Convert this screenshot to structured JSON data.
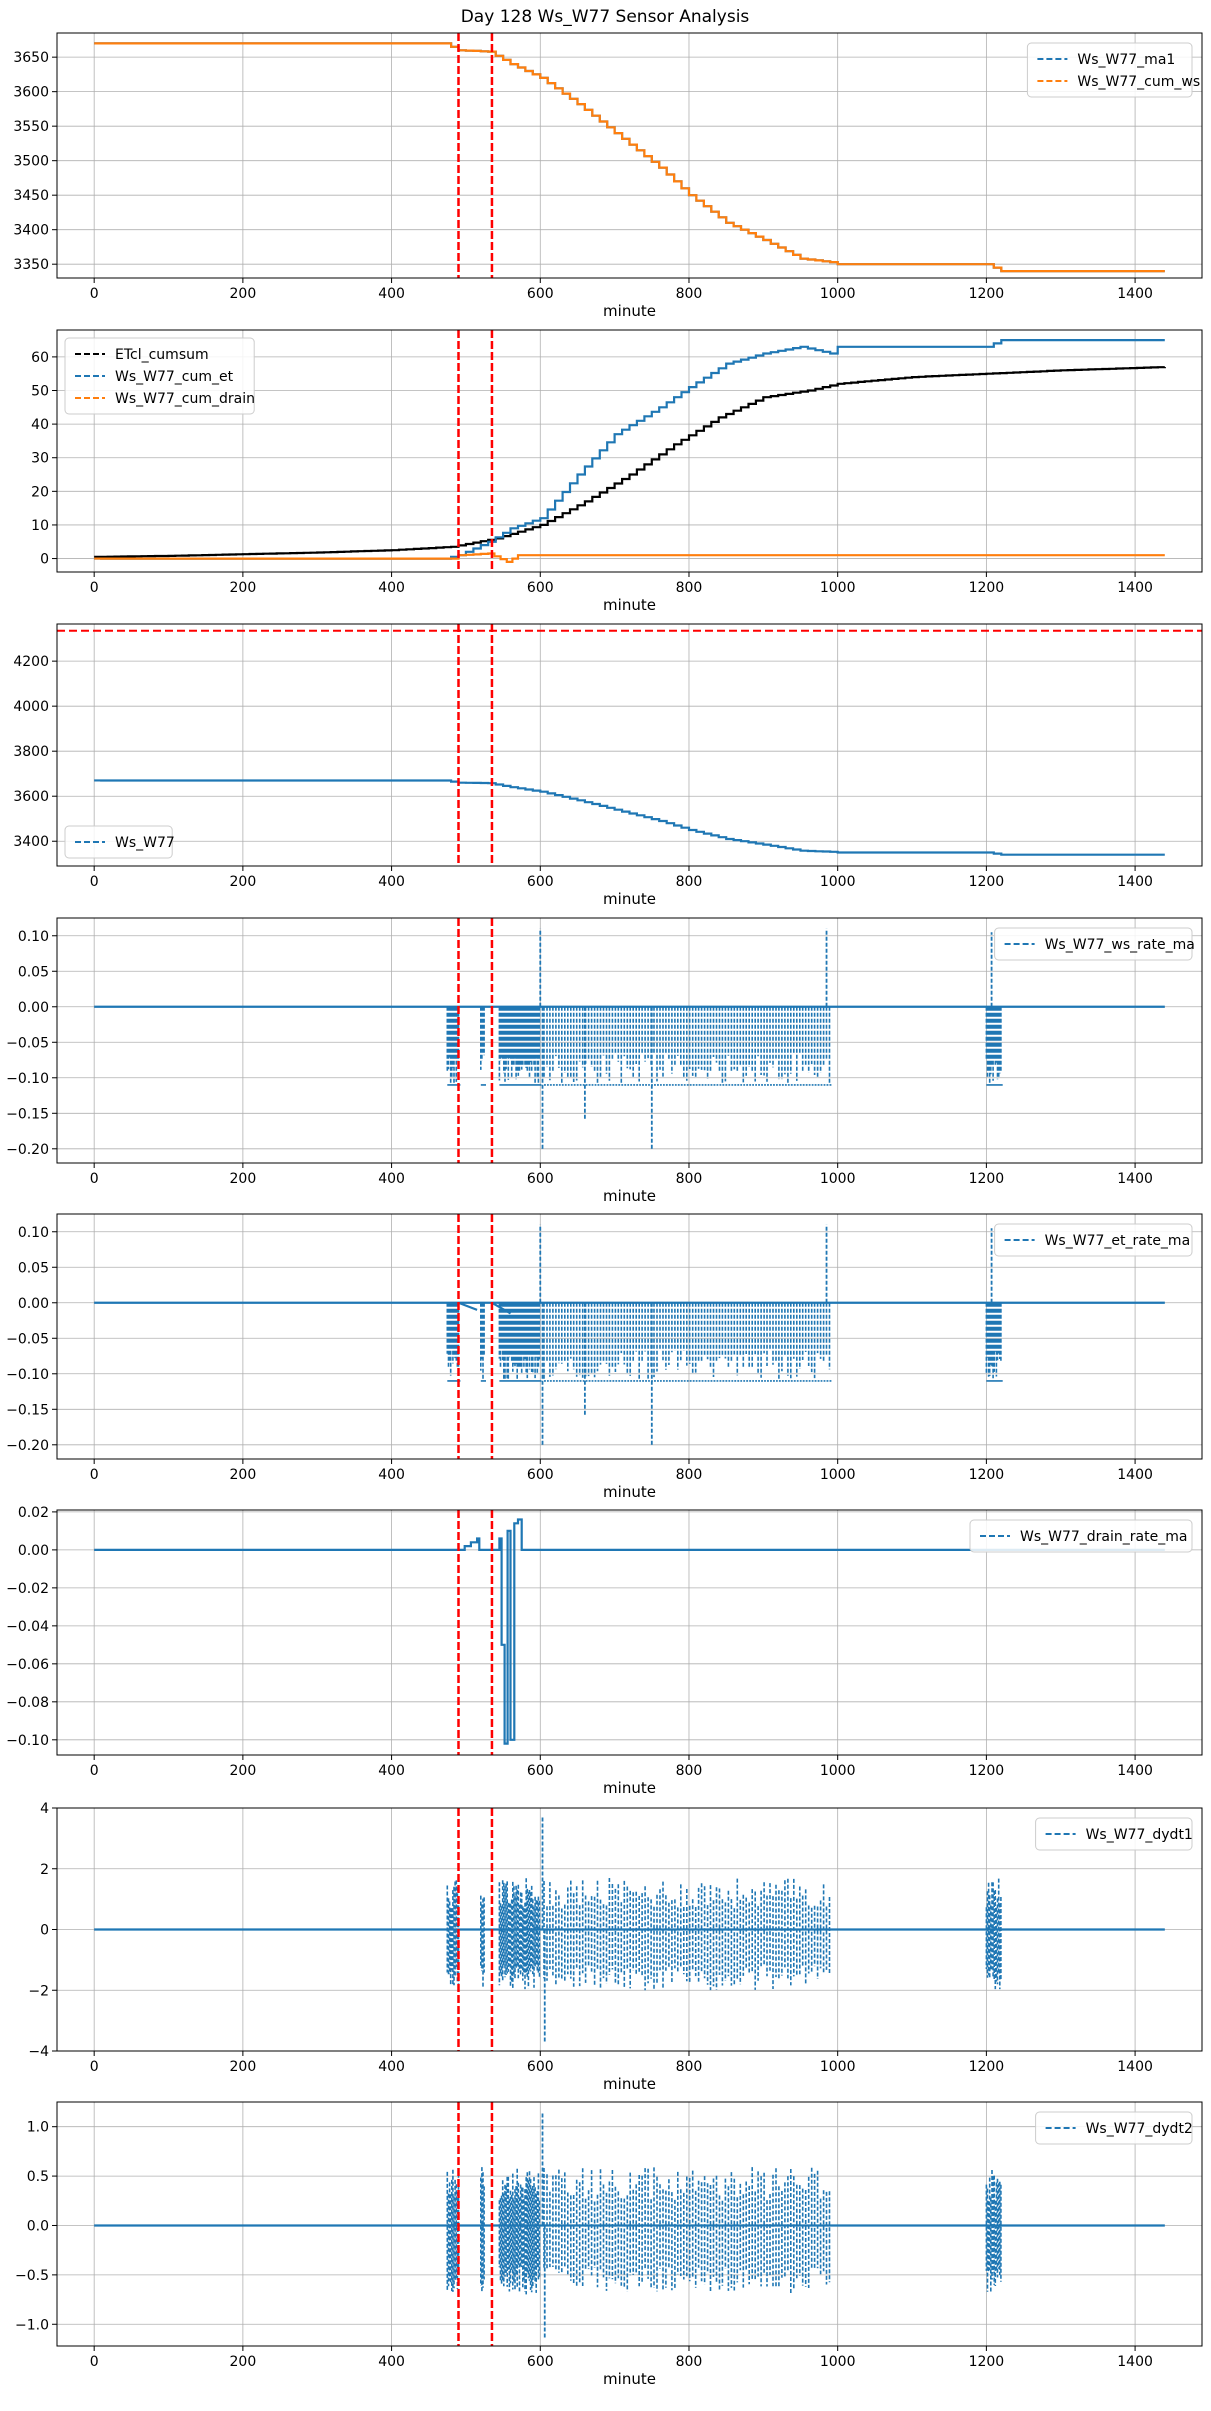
{
  "figure_title": "Day 128 Ws_W77 Sensor Analysis",
  "colors": {
    "blue": "#1f77b4",
    "orange": "#ff7f0e",
    "black": "#000000",
    "red": "#ff0000",
    "grid": "#b0b0b0"
  },
  "chart_data": [
    {
      "type": "line",
      "id": "p1",
      "xlabel": "minute",
      "legend_loc": "top-right",
      "xlim": [
        -50,
        1490
      ],
      "ylim": [
        3330,
        3685
      ],
      "xticks": [
        0,
        200,
        400,
        600,
        800,
        1000,
        1200,
        1400
      ],
      "yticks": [
        3350,
        3400,
        3450,
        3500,
        3550,
        3600,
        3650
      ],
      "vlines": [
        490,
        535
      ],
      "series": [
        {
          "name": "Ws_W77_ma1",
          "color": "#1f77b4",
          "style": "step",
          "x": [
            0,
            470,
            490,
            530,
            560,
            600,
            650,
            700,
            760,
            800,
            850,
            900,
            950,
            990,
            1000,
            1200,
            1220,
            1440
          ],
          "y": [
            3670,
            3670,
            3660,
            3658,
            3640,
            3620,
            3582,
            3540,
            3490,
            3450,
            3410,
            3385,
            3358,
            3353,
            3350,
            3350,
            3340,
            3340
          ]
        },
        {
          "name": "Ws_W77_cum_ws",
          "color": "#ff7f0e",
          "style": "step",
          "x": [
            0,
            470,
            490,
            530,
            560,
            600,
            650,
            700,
            760,
            800,
            850,
            900,
            950,
            990,
            1000,
            1200,
            1220,
            1440
          ],
          "y": [
            3670,
            3670,
            3660,
            3658,
            3640,
            3620,
            3582,
            3540,
            3490,
            3450,
            3410,
            3385,
            3358,
            3353,
            3350,
            3350,
            3340,
            3340
          ]
        }
      ]
    },
    {
      "type": "line",
      "id": "p2",
      "xlabel": "minute",
      "legend_loc": "top-left",
      "xlim": [
        -50,
        1490
      ],
      "ylim": [
        -4,
        68
      ],
      "xticks": [
        0,
        200,
        400,
        600,
        800,
        1000,
        1200,
        1400
      ],
      "yticks": [
        0,
        10,
        20,
        30,
        40,
        50,
        60
      ],
      "vlines": [
        490,
        535
      ],
      "series": [
        {
          "name": "ETcl_cumsum",
          "color": "#000000",
          "style": "step",
          "x": [
            0,
            100,
            200,
            300,
            400,
            480,
            540,
            600,
            660,
            720,
            780,
            840,
            900,
            960,
            1000,
            1100,
            1200,
            1300,
            1440
          ],
          "y": [
            0.5,
            0.8,
            1.3,
            1.8,
            2.5,
            3.5,
            6,
            10,
            17,
            25,
            34,
            42,
            48,
            50,
            52,
            54,
            55,
            56,
            57
          ]
        },
        {
          "name": "Ws_W77_cum_et",
          "color": "#1f77b4",
          "style": "step",
          "x": [
            0,
            470,
            490,
            530,
            560,
            600,
            650,
            700,
            760,
            800,
            850,
            900,
            950,
            990,
            1000,
            1200,
            1220,
            1440
          ],
          "y": [
            0,
            0,
            1,
            5,
            9,
            12,
            25,
            37,
            45,
            51,
            58,
            61,
            63,
            61,
            63,
            63,
            65,
            65
          ]
        },
        {
          "name": "Ws_W77_cum_drain",
          "color": "#ff7f0e",
          "style": "step",
          "x": [
            0,
            480,
            490,
            530,
            555,
            570,
            1440
          ],
          "y": [
            0,
            0,
            1,
            1.5,
            -1,
            1,
            1
          ]
        }
      ]
    },
    {
      "type": "line",
      "id": "p3",
      "xlabel": "minute",
      "legend_loc": "bottom-left",
      "xlim": [
        -50,
        1490
      ],
      "ylim": [
        3290,
        4365
      ],
      "xticks": [
        0,
        200,
        400,
        600,
        800,
        1000,
        1200,
        1400
      ],
      "yticks": [
        3400,
        3600,
        3800,
        4000,
        4200
      ],
      "vlines": [
        490,
        535
      ],
      "hline": 4335,
      "series": [
        {
          "name": "Ws_W77",
          "color": "#1f77b4",
          "style": "step",
          "x": [
            0,
            470,
            490,
            530,
            560,
            600,
            650,
            700,
            760,
            800,
            850,
            900,
            950,
            990,
            1000,
            1200,
            1220,
            1440
          ],
          "y": [
            3670,
            3670,
            3660,
            3658,
            3640,
            3620,
            3582,
            3540,
            3490,
            3450,
            3410,
            3385,
            3358,
            3353,
            3350,
            3350,
            3340,
            3340
          ]
        }
      ]
    },
    {
      "type": "line",
      "id": "p4",
      "xlabel": "minute",
      "legend_loc": "top-right",
      "xlim": [
        -50,
        1490
      ],
      "ylim": [
        -0.22,
        0.125
      ],
      "xticks": [
        0,
        200,
        400,
        600,
        800,
        1000,
        1200,
        1400
      ],
      "yticks": [
        0.1,
        0.05,
        0.0,
        -0.05,
        -0.1,
        -0.15,
        -0.2
      ],
      "ytick_labels": [
        "0.10",
        "0.05",
        "0.00",
        "−0.05",
        "−0.10",
        "−0.15",
        "−0.20"
      ],
      "vlines": [
        490,
        535
      ],
      "series": [
        {
          "name": "Ws_W77_ws_rate_ma",
          "color": "#1f77b4",
          "style": "spiky",
          "base": 0,
          "low": -0.11,
          "bursts": [
            [
              475,
              490
            ],
            [
              520,
              525
            ],
            [
              545,
              600
            ],
            [
              605,
              990
            ],
            [
              1200,
              1220
            ]
          ],
          "peaks": [
            [
              600,
              0.11
            ],
            [
              985,
              0.11
            ],
            [
              1207,
              0.105
            ]
          ],
          "troughs": [
            [
              603,
              -0.2
            ],
            [
              750,
              -0.2
            ],
            [
              660,
              -0.16
            ]
          ]
        }
      ]
    },
    {
      "type": "line",
      "id": "p5",
      "xlabel": "minute",
      "legend_loc": "top-right",
      "xlim": [
        -50,
        1490
      ],
      "ylim": [
        -0.22,
        0.125
      ],
      "xticks": [
        0,
        200,
        400,
        600,
        800,
        1000,
        1200,
        1400
      ],
      "yticks": [
        0.1,
        0.05,
        0.0,
        -0.05,
        -0.1,
        -0.15,
        -0.2
      ],
      "ytick_labels": [
        "0.10",
        "0.05",
        "0.00",
        "−0.05",
        "−0.10",
        "−0.15",
        "−0.20"
      ],
      "vlines": [
        490,
        535
      ],
      "series": [
        {
          "name": "Ws_W77_et_rate_ma",
          "color": "#1f77b4",
          "style": "spiky",
          "base": 0,
          "low": -0.11,
          "bursts": [
            [
              475,
              490
            ],
            [
              520,
              525
            ],
            [
              545,
              600
            ],
            [
              605,
              990
            ],
            [
              1200,
              1220
            ]
          ],
          "peaks": [
            [
              600,
              0.11
            ],
            [
              985,
              0.11
            ],
            [
              1207,
              0.105
            ]
          ],
          "troughs": [
            [
              603,
              -0.2
            ],
            [
              750,
              -0.2
            ],
            [
              660,
              -0.16
            ]
          ],
          "slopes": [
            [
              490,
              0,
              515,
              -0.01
            ],
            [
              535,
              0,
              560,
              -0.015
            ]
          ]
        }
      ]
    },
    {
      "type": "line",
      "id": "p6",
      "xlabel": "minute",
      "legend_loc": "top-right",
      "xlim": [
        -50,
        1490
      ],
      "ylim": [
        -0.108,
        0.021
      ],
      "xticks": [
        0,
        200,
        400,
        600,
        800,
        1000,
        1200,
        1400
      ],
      "yticks": [
        0.02,
        0.0,
        -0.02,
        -0.04,
        -0.06,
        -0.08,
        -0.1
      ],
      "ytick_labels": [
        "0.02",
        "0.00",
        "−0.02",
        "−0.04",
        "−0.06",
        "−0.08",
        "−0.10"
      ],
      "vlines": [
        490,
        535
      ],
      "series": [
        {
          "name": "Ws_W77_drain_rate_ma",
          "color": "#1f77b4",
          "style": "step",
          "x": [
            0,
            490,
            515,
            518,
            535,
            545,
            548,
            552,
            556,
            560,
            565,
            570,
            575,
            1440
          ],
          "y": [
            0,
            0,
            0.006,
            0,
            0,
            0.006,
            -0.05,
            -0.102,
            0.01,
            -0.1,
            0.014,
            0.016,
            0,
            0
          ]
        }
      ]
    },
    {
      "type": "line",
      "id": "p7",
      "xlabel": "minute",
      "legend_loc": "top-right",
      "xlim": [
        -50,
        1490
      ],
      "ylim": [
        -4,
        4
      ],
      "xticks": [
        0,
        200,
        400,
        600,
        800,
        1000,
        1200,
        1400
      ],
      "yticks": [
        4,
        2,
        0,
        -2,
        -4
      ],
      "ytick_labels": [
        "4",
        "2",
        "0",
        "−2",
        "−4"
      ],
      "vlines": [
        490,
        535
      ],
      "series": [
        {
          "name": "Ws_W77_dydt1",
          "color": "#1f77b4",
          "style": "spiky",
          "base": 0,
          "low": -2,
          "high": 1.7,
          "bursts": [
            [
              475,
              490
            ],
            [
              520,
              525
            ],
            [
              545,
              600
            ],
            [
              605,
              990
            ],
            [
              1200,
              1220
            ]
          ],
          "peaks": [
            [
              603,
              3.7
            ]
          ],
          "troughs": [
            [
              606,
              -3.7
            ]
          ]
        }
      ]
    },
    {
      "type": "line",
      "id": "p8",
      "xlabel": "minute",
      "legend_loc": "top-right",
      "xlim": [
        -50,
        1490
      ],
      "ylim": [
        -1.22,
        1.25
      ],
      "xticks": [
        0,
        200,
        400,
        600,
        800,
        1000,
        1200,
        1400
      ],
      "yticks": [
        1.0,
        0.5,
        0.0,
        -0.5,
        -1.0
      ],
      "ytick_labels": [
        "1.0",
        "0.5",
        "0.0",
        "−0.5",
        "−1.0"
      ],
      "vlines": [
        490,
        535
      ],
      "series": [
        {
          "name": "Ws_W77_dydt2",
          "color": "#1f77b4",
          "style": "spiky",
          "base": 0,
          "low": -0.7,
          "high": 0.6,
          "bursts": [
            [
              475,
              490
            ],
            [
              520,
              525
            ],
            [
              545,
              600
            ],
            [
              605,
              990
            ],
            [
              1200,
              1220
            ]
          ],
          "peaks": [
            [
              603,
              1.15
            ]
          ],
          "troughs": [
            [
              606,
              -1.15
            ]
          ]
        }
      ]
    }
  ]
}
